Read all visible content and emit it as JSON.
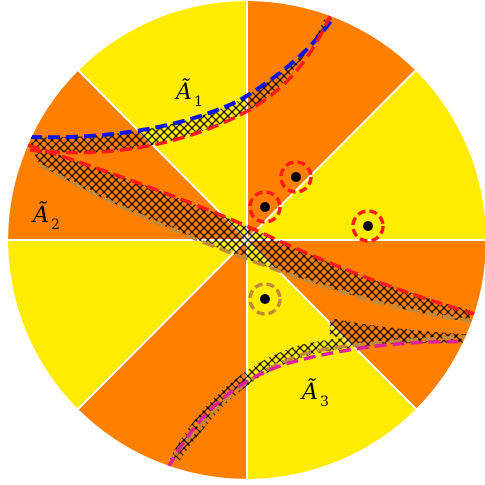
{
  "colors": {
    "yellow": "#ffec00",
    "orange": "#ff8000",
    "hatch": "#000000",
    "red": "#ff1a1a",
    "blue": "#0a14e6",
    "brown": "#c08a3a",
    "magenta": "#e0209a",
    "divider": "#ffffff"
  },
  "labels": {
    "a1": {
      "letter": "Ã",
      "index": "1"
    },
    "a2": {
      "letter": "Ã",
      "index": "2"
    },
    "a3": {
      "letter": "Ã",
      "index": "3"
    }
  },
  "sectors": [
    {
      "name": "sector-top-left-yellow",
      "color": "yellow"
    },
    {
      "name": "sector-top-right-orange",
      "color": "orange"
    },
    {
      "name": "sector-upper-right-yellow",
      "color": "yellow"
    },
    {
      "name": "sector-mid-right-orange",
      "color": "orange"
    },
    {
      "name": "sector-lower-right-orange",
      "color": "orange"
    },
    {
      "name": "sector-bottom-right-yellow",
      "color": "yellow"
    },
    {
      "name": "sector-bottom-left-orange",
      "color": "orange"
    },
    {
      "name": "sector-lower-left-yellow",
      "color": "yellow"
    },
    {
      "name": "sector-mid-left-orange",
      "color": "orange"
    },
    {
      "name": "sector-upper-left-orange",
      "color": "orange"
    }
  ],
  "points": [
    {
      "name": "point-red-1",
      "ring": "red"
    },
    {
      "name": "point-red-2",
      "ring": "red"
    },
    {
      "name": "point-red-3",
      "ring": "red"
    },
    {
      "name": "point-brown",
      "ring": "brown"
    }
  ]
}
